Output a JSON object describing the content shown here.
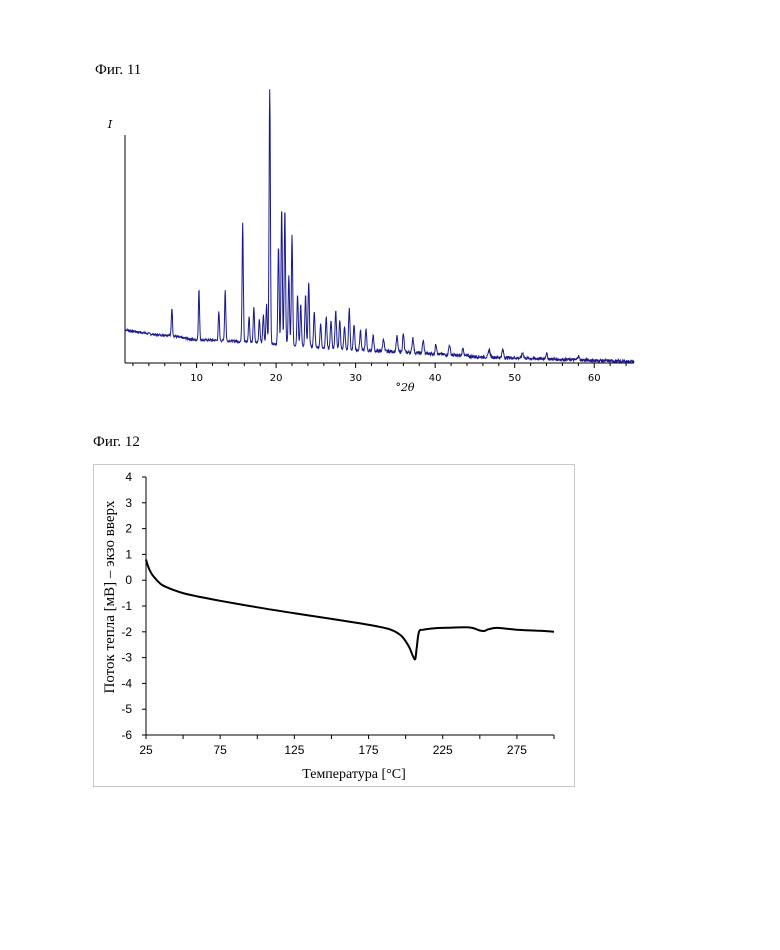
{
  "figures": {
    "fig11_label": "Фиг. 11",
    "fig12_label": "Фиг. 12"
  },
  "chart_data": [
    {
      "type": "line",
      "title": "",
      "xlabel": "°2θ",
      "ylabel": "I",
      "xlim": [
        1,
        65
      ],
      "ylim": [
        0,
        100
      ],
      "x_ticks": [
        10,
        20,
        30,
        40,
        50,
        60
      ],
      "y_ticks": [],
      "color": "#1a1a8c",
      "baseline": [
        [
          1,
          13
        ],
        [
          3,
          12
        ],
        [
          5,
          11
        ],
        [
          6.5,
          11
        ],
        [
          8,
          10
        ],
        [
          10,
          9
        ],
        [
          12,
          9
        ],
        [
          15,
          8.5
        ],
        [
          18,
          8
        ],
        [
          22,
          7
        ],
        [
          26,
          6
        ],
        [
          30,
          5
        ],
        [
          35,
          4.5
        ],
        [
          40,
          3.5
        ],
        [
          45,
          2.5
        ],
        [
          50,
          2
        ],
        [
          55,
          1.5
        ],
        [
          60,
          1
        ],
        [
          65,
          0.5
        ]
      ],
      "peaks": [
        {
          "x": 6.9,
          "y": 11
        },
        {
          "x": 10.3,
          "y": 20
        },
        {
          "x": 12.8,
          "y": 11
        },
        {
          "x": 13.6,
          "y": 20
        },
        {
          "x": 15.8,
          "y": 47
        },
        {
          "x": 16.6,
          "y": 10
        },
        {
          "x": 17.2,
          "y": 14
        },
        {
          "x": 17.9,
          "y": 9
        },
        {
          "x": 18.4,
          "y": 11
        },
        {
          "x": 18.8,
          "y": 15
        },
        {
          "x": 19.2,
          "y": 100
        },
        {
          "x": 20.3,
          "y": 38
        },
        {
          "x": 20.7,
          "y": 53
        },
        {
          "x": 21.1,
          "y": 53
        },
        {
          "x": 21.6,
          "y": 27
        },
        {
          "x": 22.0,
          "y": 43
        },
        {
          "x": 22.7,
          "y": 20
        },
        {
          "x": 23.1,
          "y": 16
        },
        {
          "x": 23.7,
          "y": 20
        },
        {
          "x": 24.1,
          "y": 25
        },
        {
          "x": 24.8,
          "y": 14
        },
        {
          "x": 25.6,
          "y": 9
        },
        {
          "x": 26.3,
          "y": 12
        },
        {
          "x": 26.9,
          "y": 11
        },
        {
          "x": 27.5,
          "y": 15
        },
        {
          "x": 28.0,
          "y": 11
        },
        {
          "x": 28.6,
          "y": 9
        },
        {
          "x": 29.2,
          "y": 16
        },
        {
          "x": 29.8,
          "y": 10
        },
        {
          "x": 30.6,
          "y": 8
        },
        {
          "x": 31.3,
          "y": 8
        },
        {
          "x": 32.2,
          "y": 6
        },
        {
          "x": 33.5,
          "y": 5
        },
        {
          "x": 35.2,
          "y": 6
        },
        {
          "x": 36.0,
          "y": 7
        },
        {
          "x": 37.2,
          "y": 6
        },
        {
          "x": 38.5,
          "y": 5
        },
        {
          "x": 40.1,
          "y": 4
        },
        {
          "x": 41.8,
          "y": 4
        },
        {
          "x": 43.5,
          "y": 3
        },
        {
          "x": 46.8,
          "y": 3
        },
        {
          "x": 48.5,
          "y": 3
        },
        {
          "x": 51.0,
          "y": 2
        },
        {
          "x": 54.0,
          "y": 2
        },
        {
          "x": 58.0,
          "y": 1.5
        }
      ]
    },
    {
      "type": "line",
      "title": "",
      "xlabel": "Температура [°C]",
      "ylabel": "Поток тепла [мВ] – экзо вверх",
      "xlim": [
        25,
        300
      ],
      "ylim": [
        -6,
        4
      ],
      "x_ticks": [
        25,
        75,
        125,
        175,
        225,
        275
      ],
      "y_ticks": [
        4,
        3,
        2,
        1,
        0,
        -1,
        -2,
        -3,
        -4,
        -5,
        -6
      ],
      "color": "#000000",
      "points": [
        [
          25,
          0.8
        ],
        [
          27,
          0.45
        ],
        [
          30,
          0.15
        ],
        [
          35,
          -0.15
        ],
        [
          40,
          -0.3
        ],
        [
          50,
          -0.5
        ],
        [
          60,
          -0.63
        ],
        [
          75,
          -0.8
        ],
        [
          100,
          -1.05
        ],
        [
          125,
          -1.28
        ],
        [
          150,
          -1.5
        ],
        [
          170,
          -1.68
        ],
        [
          180,
          -1.78
        ],
        [
          190,
          -1.92
        ],
        [
          197,
          -2.15
        ],
        [
          202,
          -2.55
        ],
        [
          205,
          -2.95
        ],
        [
          206.5,
          -3.05
        ],
        [
          207.5,
          -2.6
        ],
        [
          209,
          -2.0
        ],
        [
          212,
          -1.92
        ],
        [
          220,
          -1.86
        ],
        [
          230,
          -1.84
        ],
        [
          240,
          -1.82
        ],
        [
          245,
          -1.85
        ],
        [
          250,
          -1.95
        ],
        [
          253,
          -1.97
        ],
        [
          256,
          -1.9
        ],
        [
          262,
          -1.85
        ],
        [
          275,
          -1.92
        ],
        [
          290,
          -1.96
        ],
        [
          300,
          -2.0
        ]
      ]
    }
  ]
}
